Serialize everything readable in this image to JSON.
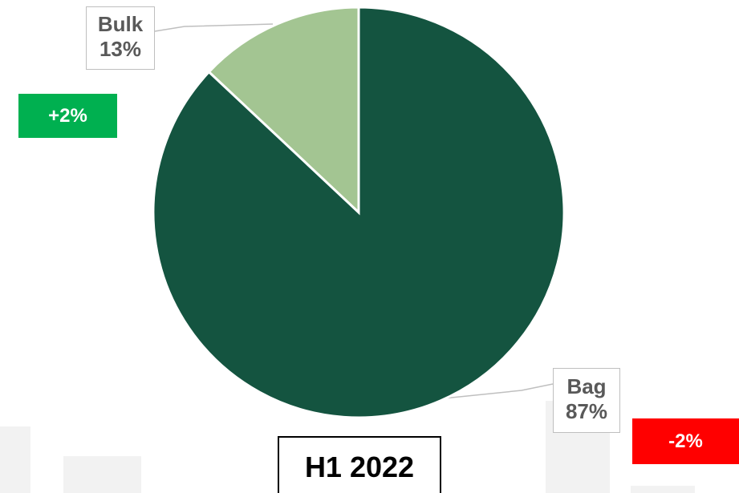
{
  "chart_data": {
    "type": "pie",
    "title": "",
    "slices": [
      {
        "label": "Bulk",
        "value_label": "13%",
        "value": 13,
        "color": "#a3c592"
      },
      {
        "label": "Bag",
        "value_label": "87%",
        "value": 87,
        "color": "#145440"
      }
    ],
    "period": "H1 2022",
    "changes": [
      {
        "text": "+2%",
        "slice": "Bulk",
        "color": "#00b050"
      },
      {
        "text": "-2%",
        "slice": "Bag",
        "color": "#ff0000"
      }
    ]
  }
}
